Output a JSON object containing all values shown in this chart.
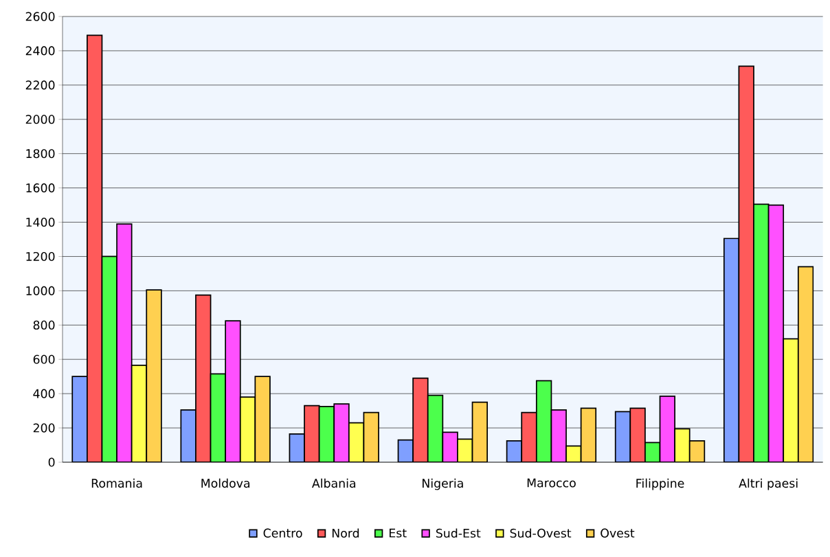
{
  "chart_data": {
    "type": "bar",
    "categories": [
      "Romania",
      "Moldova",
      "Albania",
      "Nigeria",
      "Marocco",
      "Filippine",
      "Altri paesi"
    ],
    "series": [
      {
        "name": "Centro",
        "color": "#7f9fff",
        "values": [
          500,
          305,
          165,
          130,
          125,
          295,
          1305
        ]
      },
      {
        "name": "Nord",
        "color": "#ff5a5a",
        "values": [
          2490,
          975,
          330,
          490,
          290,
          315,
          2310
        ]
      },
      {
        "name": "Est",
        "color": "#4cff4c",
        "values": [
          1200,
          515,
          325,
          390,
          475,
          115,
          1505
        ]
      },
      {
        "name": "Sud-Est",
        "color": "#ff50ff",
        "values": [
          1390,
          825,
          340,
          175,
          305,
          385,
          1500
        ]
      },
      {
        "name": "Sud-Ovest",
        "color": "#ffff50",
        "values": [
          565,
          380,
          230,
          135,
          95,
          195,
          720
        ]
      },
      {
        "name": "Ovest",
        "color": "#ffd050",
        "values": [
          1005,
          500,
          290,
          350,
          315,
          125,
          1140
        ]
      }
    ],
    "ylim": [
      0,
      2600
    ],
    "yticks": [
      0,
      200,
      400,
      600,
      800,
      1000,
      1200,
      1400,
      1600,
      1800,
      2000,
      2200,
      2400,
      2600
    ],
    "grid": "y",
    "legend": "bottom"
  }
}
